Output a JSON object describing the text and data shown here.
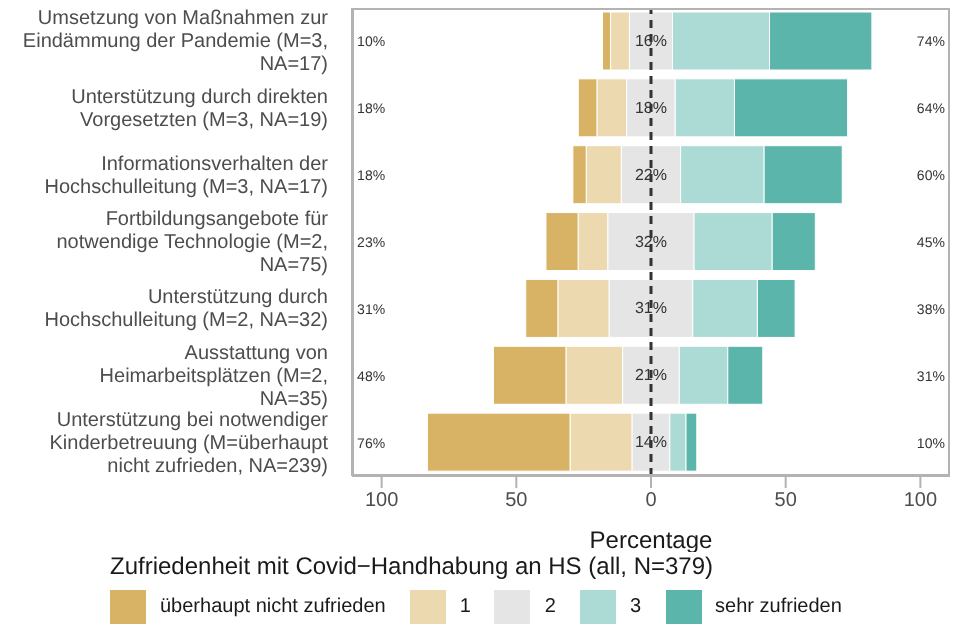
{
  "chart_data": {
    "type": "bar",
    "orientation": "horizontal",
    "xlabel": "Percentage",
    "legend_title": "Zufriedenheit mit Covid−Handhabung an HS (all, N=379)",
    "legend": "bottom",
    "categories": [
      "Umsetzung von Maßnahmen zur Eindämmung der Pandemie (M=3, NA=17)",
      "Unterstützung durch direkten Vorgesetzten (M=3, NA=19)",
      "Informationsverhalten der Hochschulleitung (M=3, NA=17)",
      "Fortbildungsangebote für notwendige Technologie (M=2, NA=75)",
      "Unterstützung durch Hochschulleitung (M=2, NA=32)",
      "Ausstattung von Heimarbeitsplätzen (M=2, NA=35)",
      "Unterstützung bei notwendiger Kinderbetreuung (M=überhaupt nicht zufrieden, NA=239)"
    ],
    "series": [
      {
        "name": "überhaupt nicht zufrieden",
        "color": "#d9b365",
        "values": [
          3,
          7,
          5,
          12,
          12,
          27,
          53
        ],
        "base": [
          -18,
          -27,
          -29,
          -39,
          -46.5,
          -58.5,
          -83
        ]
      },
      {
        "name": "1",
        "color": "#ecd9b0",
        "values": [
          7,
          11,
          13,
          11,
          19,
          21,
          23
        ],
        "base": [
          -15,
          -20,
          -24,
          -27,
          -34.5,
          -31.5,
          -30
        ]
      },
      {
        "name": "2",
        "color": "#e5e5e5",
        "values": [
          16,
          18,
          22,
          32,
          31,
          21,
          14
        ],
        "base": [
          -8,
          -9,
          -11,
          -16,
          -15.5,
          -10.5,
          -7
        ],
        "value_labels": [
          "16%",
          "18%",
          "22%",
          "32%",
          "31%",
          "21%",
          "14%"
        ]
      },
      {
        "name": "3",
        "color": "#acdad5",
        "values": [
          36,
          22,
          31,
          29,
          24,
          18,
          6
        ],
        "base": [
          8,
          9,
          11,
          16,
          15.5,
          10.5,
          7
        ]
      },
      {
        "name": "sehr zufrieden",
        "color": "#5cb5ab",
        "values": [
          38,
          42,
          29,
          16,
          14,
          13,
          4
        ],
        "base": [
          44,
          31,
          42,
          45,
          39.5,
          28.5,
          13
        ]
      }
    ],
    "xlim": [
      -111,
      111
    ],
    "xticks": [
      {
        "value": -100,
        "label": "100"
      },
      {
        "value": -50,
        "label": "50"
      },
      0,
      50,
      100
    ],
    "ref_lines": [
      {
        "axis": "x",
        "value": 0,
        "color": "#333333",
        "line_style": "dashed"
      }
    ],
    "annotations": [
      "10%",
      "18%",
      "18%",
      "23%",
      "31%",
      "48%",
      "76%",
      "74%",
      "64%",
      "60%",
      "45%",
      "38%",
      "31%",
      "10%"
    ]
  }
}
